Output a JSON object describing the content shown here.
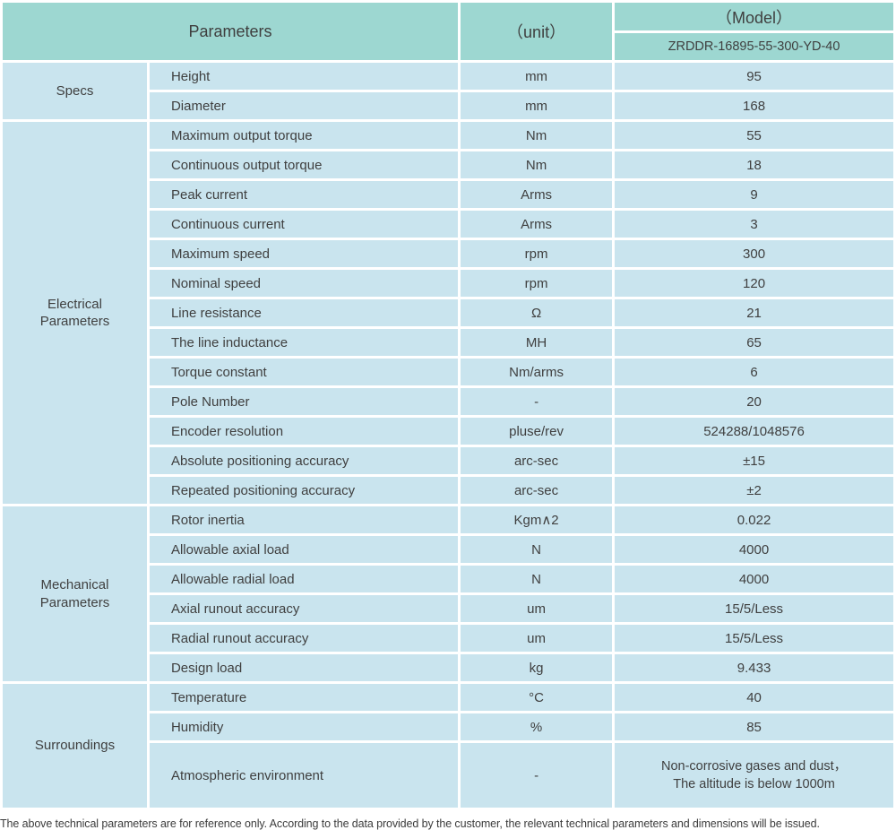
{
  "colors": {
    "header_bg": "#9dd7d1",
    "cell_bg": "#c9e4ee",
    "grid": "#ffffff",
    "text": "#3f3f3f"
  },
  "table": {
    "header": {
      "parameters_label": "Parameters",
      "unit_label": "（unit）",
      "model_label": "（Model）",
      "model_value": "ZRDDR-16895-55-300-YD-40"
    },
    "groups": [
      {
        "label": "Specs",
        "rows": [
          {
            "parameter": "Height",
            "unit": "mm",
            "value": "95"
          },
          {
            "parameter": "Diameter",
            "unit": "mm",
            "value": "168"
          }
        ]
      },
      {
        "label": "Electrical Parameters",
        "rows": [
          {
            "parameter": "Maximum output torque",
            "unit": "Nm",
            "value": "55"
          },
          {
            "parameter": "Continuous output torque",
            "unit": "Nm",
            "value": "18"
          },
          {
            "parameter": "Peak current",
            "unit": "Arms",
            "value": "9"
          },
          {
            "parameter": "Continuous current",
            "unit": "Arms",
            "value": "3"
          },
          {
            "parameter": "Maximum speed",
            "unit": "rpm",
            "value": "300"
          },
          {
            "parameter": "Nominal speed",
            "unit": "rpm",
            "value": "120"
          },
          {
            "parameter": "Line resistance",
            "unit": "Ω",
            "value": "21"
          },
          {
            "parameter": "The line inductance",
            "unit": "MH",
            "value": "65"
          },
          {
            "parameter": "Torque constant",
            "unit": "Nm/arms",
            "value": "6"
          },
          {
            "parameter": "Pole Number",
            "unit": "-",
            "value": "20"
          },
          {
            "parameter": "Encoder resolution",
            "unit": "pluse/rev",
            "value": "524288/1048576"
          },
          {
            "parameter": "Absolute positioning accuracy",
            "unit": "arc-sec",
            "value": "±15"
          },
          {
            "parameter": "Repeated positioning accuracy",
            "unit": "arc-sec",
            "value": "±2"
          }
        ]
      },
      {
        "label": "Mechanical Parameters",
        "rows": [
          {
            "parameter": "Rotor inertia",
            "unit": "Kgm∧2",
            "value": "0.022"
          },
          {
            "parameter": "Allowable axial load",
            "unit": "N",
            "value": "4000"
          },
          {
            "parameter": "Allowable radial load",
            "unit": "N",
            "value": "4000"
          },
          {
            "parameter": "Axial runout accuracy",
            "unit": "um",
            "value": "15/5/Less"
          },
          {
            "parameter": "Radial runout accuracy",
            "unit": "um",
            "value": "15/5/Less"
          },
          {
            "parameter": "Design load",
            "unit": "kg",
            "value": "9.433"
          }
        ]
      },
      {
        "label": "Surroundings",
        "rows": [
          {
            "parameter": "Temperature",
            "unit": "°C",
            "value": "40"
          },
          {
            "parameter": "Humidity",
            "unit": "%",
            "value": "85"
          },
          {
            "parameter": "Atmospheric environment",
            "unit": "-",
            "value": "Non-corrosive gases and dust，\nThe altitude is below 1000m",
            "tall": true
          }
        ]
      }
    ]
  },
  "footer": {
    "note": "The above technical parameters are for reference only. According to the data provided by the customer, the relevant technical parameters and dimensions will be issued."
  }
}
